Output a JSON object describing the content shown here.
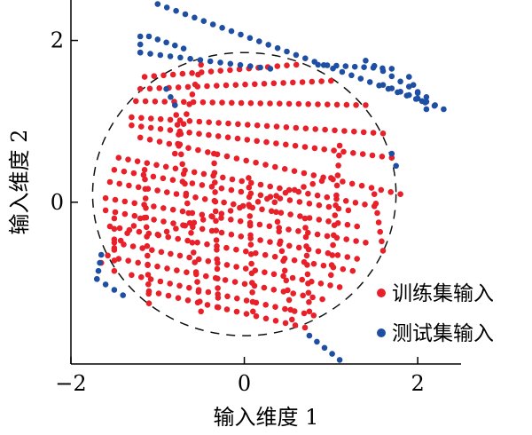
{
  "chart_data": {
    "type": "scatter",
    "xlabel": "输入维度 1",
    "ylabel": "输入维度 2",
    "xlim": [
      -2,
      2.5
    ],
    "ylim": [
      -2,
      2.5
    ],
    "x_ticks": [
      -2,
      0,
      2
    ],
    "y_ticks": [
      0,
      2
    ],
    "x_tick_labels": [
      "−2",
      "0",
      "2"
    ],
    "y_tick_labels": [
      "0",
      "2"
    ],
    "grid": false,
    "legend_position": "bottom-right",
    "boundary": {
      "shape": "circle",
      "style": "dashed",
      "center": [
        0.0,
        0.1
      ],
      "radius": 1.75
    },
    "series": [
      {
        "name": "训练集输入",
        "color": "#e8202a",
        "strokes": [
          [
            [
              -1.15,
              1.55
            ],
            [
              0.6,
              1.7
            ]
          ],
          [
            [
              -1.2,
              1.4
            ],
            [
              1.0,
              1.5
            ]
          ],
          [
            [
              -1.25,
              1.25
            ],
            [
              1.4,
              1.2
            ]
          ],
          [
            [
              -1.3,
              1.05
            ],
            [
              1.6,
              0.85
            ]
          ],
          [
            [
              -1.3,
              0.95
            ],
            [
              1.7,
              0.55
            ]
          ],
          [
            [
              -1.2,
              0.8
            ],
            [
              1.8,
              0.1
            ]
          ],
          [
            [
              -1.45,
              0.55
            ],
            [
              1.5,
              -0.05
            ]
          ],
          [
            [
              -1.5,
              0.4
            ],
            [
              1.2,
              -0.1
            ]
          ],
          [
            [
              -1.55,
              0.25
            ],
            [
              1.3,
              -0.3
            ]
          ],
          [
            [
              -1.6,
              0.05
            ],
            [
              1.4,
              -0.5
            ]
          ],
          [
            [
              -1.6,
              -0.1
            ],
            [
              1.3,
              -0.7
            ]
          ],
          [
            [
              -1.55,
              -0.3
            ],
            [
              1.25,
              -0.85
            ]
          ],
          [
            [
              -1.5,
              -0.5
            ],
            [
              1.1,
              -1.05
            ]
          ],
          [
            [
              -1.45,
              -0.7
            ],
            [
              0.9,
              -1.2
            ]
          ],
          [
            [
              -1.3,
              -0.9
            ],
            [
              0.8,
              -1.4
            ]
          ],
          [
            [
              -1.1,
              -1.1
            ],
            [
              0.7,
              -1.55
            ]
          ],
          [
            [
              -1.5,
              -0.2
            ],
            [
              -1.5,
              -0.85
            ]
          ],
          [
            [
              -1.15,
              0.4
            ],
            [
              -1.1,
              -1.25
            ]
          ],
          [
            [
              -0.8,
              1.2
            ],
            [
              -0.5,
              -1.35
            ]
          ],
          [
            [
              -0.35,
              0.6
            ],
            [
              -0.3,
              -1.3
            ]
          ],
          [
            [
              0.05,
              0.3
            ],
            [
              0.1,
              -1.35
            ]
          ],
          [
            [
              0.35,
              0.0
            ],
            [
              0.55,
              -1.45
            ]
          ],
          [
            [
              0.7,
              -0.2
            ],
            [
              0.75,
              -1.35
            ]
          ],
          [
            [
              1.1,
              0.7
            ],
            [
              1.0,
              -0.9
            ]
          ],
          [
            [
              -1.65,
              -0.75
            ],
            [
              -1.2,
              -0.2
            ]
          ],
          [
            [
              -1.0,
              -0.4
            ],
            [
              1.0,
              0.3
            ]
          ],
          [
            [
              -0.5,
              1.7
            ],
            [
              -0.8,
              0.6
            ]
          ],
          [
            [
              1.5,
              0.1
            ],
            [
              1.6,
              -0.6
            ]
          ]
        ]
      },
      {
        "name": "测试集输入",
        "color": "#1f4fa3",
        "strokes": [
          [
            [
              -1.0,
              2.45
            ],
            [
              2.3,
              1.15
            ]
          ],
          [
            [
              -1.1,
              2.05
            ],
            [
              -0.7,
              1.9
            ]
          ],
          [
            [
              -1.2,
              2.05
            ],
            [
              -1.2,
              1.85
            ]
          ],
          [
            [
              -1.2,
              1.85
            ],
            [
              0.3,
              1.65
            ]
          ],
          [
            [
              0.85,
              1.7
            ],
            [
              1.7,
              1.65
            ]
          ],
          [
            [
              1.4,
              1.75
            ],
            [
              2.1,
              1.3
            ]
          ],
          [
            [
              1.9,
              1.55
            ],
            [
              2.1,
              1.15
            ]
          ],
          [
            [
              1.6,
              1.45
            ],
            [
              2.2,
              1.2
            ]
          ],
          [
            [
              -1.65,
              -0.65
            ],
            [
              -1.7,
              -0.95
            ]
          ],
          [
            [
              -1.7,
              -0.95
            ],
            [
              -1.4,
              -1.15
            ]
          ],
          [
            [
              0.75,
              -1.65
            ],
            [
              1.1,
              -1.95
            ]
          ],
          [
            [
              -0.9,
              1.4
            ],
            [
              -0.8,
              1.2
            ]
          ],
          [
            [
              1.7,
              0.6
            ],
            [
              1.75,
              0.45
            ]
          ]
        ]
      }
    ]
  }
}
